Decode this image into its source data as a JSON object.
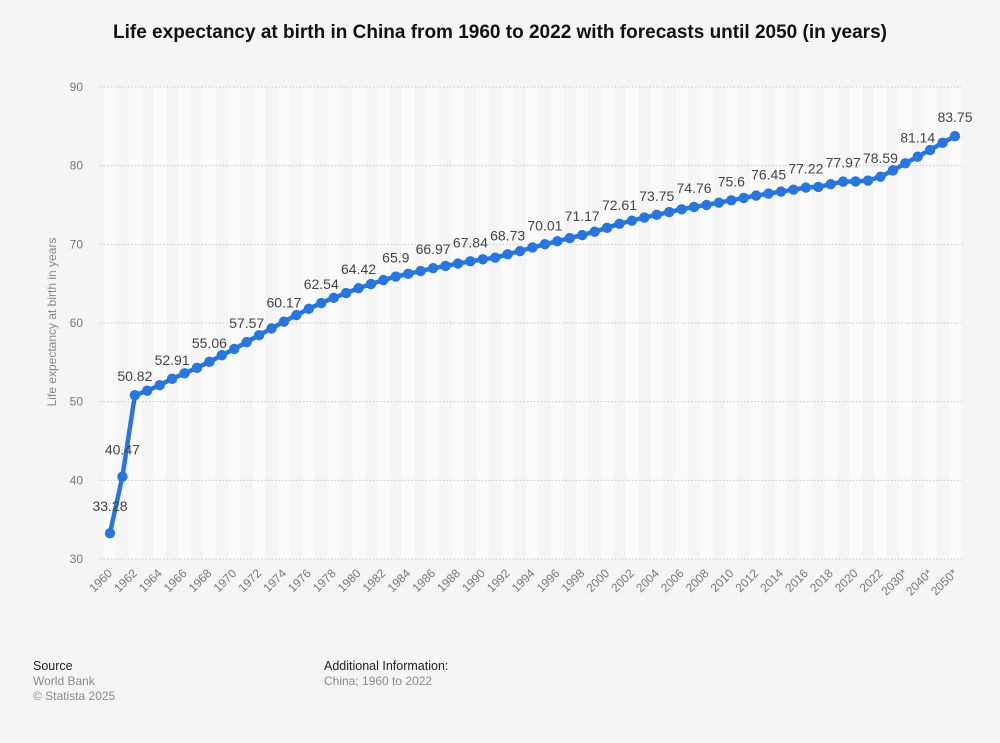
{
  "title": "Life expectancy at birth in China from 1960 to 2022 with forecasts until 2050 (in years)",
  "footer": {
    "source_heading": "Source",
    "source_lines": [
      "World Bank",
      "© Statista 2025"
    ],
    "additional_heading": "Additional Information:",
    "additional_lines": [
      "China; 1960 to 2022"
    ]
  },
  "colors": {
    "series": "#2876dd",
    "grid": "#c8c8c8",
    "text": "#444444",
    "axis_text": "#777777"
  },
  "chart_data": {
    "type": "line",
    "title": "Life expectancy at birth in China from 1960 to 2022 with forecasts until 2050 (in years)",
    "xlabel": "",
    "ylabel": "Life expectancy at birth in years",
    "ylim": [
      30,
      90
    ],
    "yticks": [
      30,
      40,
      50,
      60,
      70,
      80,
      90
    ],
    "grid": true,
    "legend": "none",
    "x": [
      "1960",
      "1961",
      "1962",
      "1963",
      "1964",
      "1965",
      "1966",
      "1967",
      "1968",
      "1969",
      "1970",
      "1971",
      "1972",
      "1973",
      "1974",
      "1975",
      "1976",
      "1977",
      "1978",
      "1979",
      "1980",
      "1981",
      "1982",
      "1983",
      "1984",
      "1985",
      "1986",
      "1987",
      "1988",
      "1989",
      "1990",
      "1991",
      "1992",
      "1993",
      "1994",
      "1995",
      "1996",
      "1997",
      "1998",
      "1999",
      "2000",
      "2001",
      "2002",
      "2003",
      "2004",
      "2005",
      "2006",
      "2007",
      "2008",
      "2009",
      "2010",
      "2011",
      "2012",
      "2013",
      "2014",
      "2015",
      "2016",
      "2017",
      "2018",
      "2019",
      "2020",
      "2021",
      "2022",
      "2025*",
      "2030*",
      "2035*",
      "2040*",
      "2045*",
      "2050*"
    ],
    "xtick_labels": [
      "1960",
      "1962",
      "1964",
      "1966",
      "1968",
      "1970",
      "1972",
      "1974",
      "1976",
      "1978",
      "1980",
      "1982",
      "1984",
      "1986",
      "1988",
      "1990",
      "1992",
      "1994",
      "1996",
      "1998",
      "2000",
      "2002",
      "2004",
      "2006",
      "2008",
      "2010",
      "2012",
      "2014",
      "2016",
      "2018",
      "2020",
      "2022",
      "2030*",
      "2040*",
      "2050*"
    ],
    "series": [
      {
        "name": "Life expectancy at birth",
        "values": [
          33.28,
          40.47,
          50.82,
          51.4,
          52.1,
          52.91,
          53.6,
          54.3,
          55.06,
          55.9,
          56.7,
          57.57,
          58.45,
          59.3,
          60.17,
          61.0,
          61.8,
          62.54,
          63.2,
          63.8,
          64.42,
          64.95,
          65.45,
          65.9,
          66.25,
          66.6,
          66.97,
          67.25,
          67.55,
          67.84,
          68.1,
          68.3,
          68.73,
          69.15,
          69.6,
          70.01,
          70.4,
          70.8,
          71.17,
          71.6,
          72.1,
          72.61,
          73.0,
          73.4,
          73.75,
          74.1,
          74.45,
          74.76,
          75.0,
          75.3,
          75.6,
          75.9,
          76.2,
          76.45,
          76.7,
          76.95,
          77.22,
          77.3,
          77.65,
          77.97,
          78.0,
          78.1,
          78.59,
          79.4,
          80.3,
          81.14,
          82.0,
          82.9,
          83.75
        ]
      }
    ],
    "data_labels": [
      {
        "x": "1960",
        "value": "33.28"
      },
      {
        "x": "1961",
        "value": "40.47"
      },
      {
        "x": "1962",
        "value": "50.82"
      },
      {
        "x": "1965",
        "value": "52.91"
      },
      {
        "x": "1968",
        "value": "55.06"
      },
      {
        "x": "1971",
        "value": "57.57"
      },
      {
        "x": "1974",
        "value": "60.17"
      },
      {
        "x": "1977",
        "value": "62.54"
      },
      {
        "x": "1980",
        "value": "64.42"
      },
      {
        "x": "1983",
        "value": "65.9"
      },
      {
        "x": "1986",
        "value": "66.97"
      },
      {
        "x": "1989",
        "value": "67.84"
      },
      {
        "x": "1992",
        "value": "68.73"
      },
      {
        "x": "1995",
        "value": "70.01"
      },
      {
        "x": "1998",
        "value": "71.17"
      },
      {
        "x": "2001",
        "value": "72.61"
      },
      {
        "x": "2004",
        "value": "73.75"
      },
      {
        "x": "2007",
        "value": "74.76"
      },
      {
        "x": "2010",
        "value": "75.6"
      },
      {
        "x": "2013",
        "value": "76.45"
      },
      {
        "x": "2016",
        "value": "77.22"
      },
      {
        "x": "2019",
        "value": "77.97"
      },
      {
        "x": "2022",
        "value": "78.59"
      },
      {
        "x": "2035*",
        "value": "81.14"
      },
      {
        "x": "2050*",
        "value": "83.75"
      }
    ]
  }
}
